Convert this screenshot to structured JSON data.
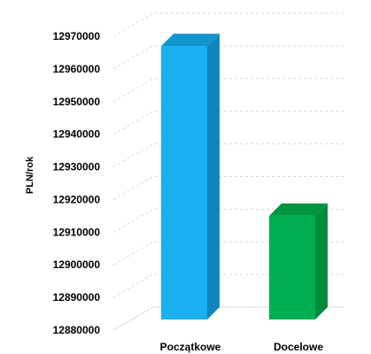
{
  "chart_data": {
    "type": "bar",
    "categories": [
      "Początkowe",
      "Docelowe"
    ],
    "values": [
      12967000,
      12915000
    ],
    "title": "",
    "xlabel": "",
    "ylabel": "PLN/rok",
    "ylim": [
      12880000,
      12970000
    ],
    "yticks": [
      12880000,
      12890000,
      12900000,
      12910000,
      12920000,
      12930000,
      12940000,
      12950000,
      12960000,
      12970000
    ],
    "grid": true,
    "bar_colors": [
      "#1ab0ef",
      "#00b050"
    ],
    "bar_side_colors": [
      "#0f86bc",
      "#008a3c"
    ],
    "bar_top_colors": [
      "#1295cf",
      "#00953f"
    ],
    "grid_color": "#d9d9d9"
  }
}
